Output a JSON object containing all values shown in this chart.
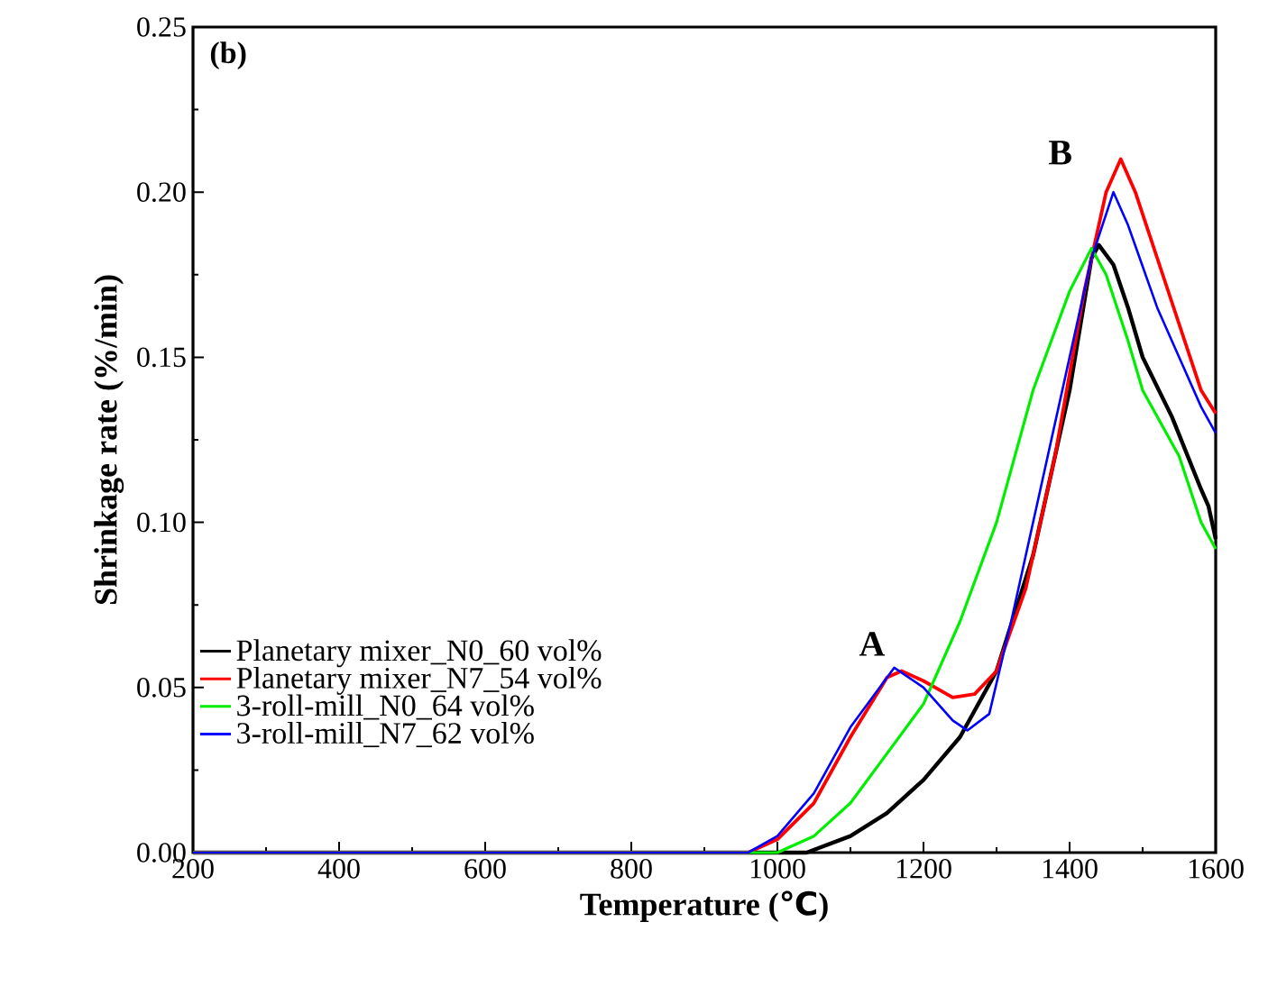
{
  "chart_data": {
    "type": "line",
    "xlabel": "Temperature (℃)",
    "ylabel": "Shrinkage rate (%/min)",
    "annotations": [
      "(b)",
      "A",
      "B"
    ],
    "xlim": [
      200,
      1600
    ],
    "xticks": [
      200,
      400,
      600,
      800,
      1000,
      1200,
      1400,
      1600
    ],
    "ylim": [
      0,
      0.25
    ],
    "yticks": [
      {
        "value": 0,
        "label": "0.00"
      },
      {
        "value": 0.05,
        "label": "0.05"
      },
      {
        "value": 0.1,
        "label": "0.10"
      },
      {
        "value": 0.15,
        "label": "0.15"
      },
      {
        "value": 0.2,
        "label": "0.20"
      },
      {
        "value": 0.25,
        "label": "0.25"
      }
    ],
    "grid": false,
    "legend": "left",
    "marker": "none",
    "line_style": "solid",
    "series": [
      {
        "name": "Planetary mixer_N0_60 vol%",
        "color": "#000000",
        "x": [
          200,
          1000,
          1040,
          1100,
          1150,
          1200,
          1250,
          1300,
          1350,
          1400,
          1430,
          1440,
          1460,
          1480,
          1500,
          1540,
          1580,
          1590,
          1600
        ],
        "values": [
          0,
          0,
          0,
          0.005,
          0.012,
          0.022,
          0.035,
          0.055,
          0.09,
          0.14,
          0.18,
          0.184,
          0.178,
          0.165,
          0.15,
          0.132,
          0.11,
          0.105,
          0.095
        ]
      },
      {
        "name": "Planetary mixer_N7_54 vol%",
        "color": "#ff0000",
        "x": [
          200,
          960,
          1000,
          1050,
          1100,
          1150,
          1170,
          1200,
          1240,
          1270,
          1300,
          1340,
          1380,
          1420,
          1450,
          1470,
          1490,
          1520,
          1550,
          1580,
          1600
        ],
        "values": [
          0,
          0,
          0.004,
          0.015,
          0.035,
          0.053,
          0.055,
          0.052,
          0.047,
          0.048,
          0.055,
          0.08,
          0.12,
          0.17,
          0.2,
          0.21,
          0.2,
          0.18,
          0.16,
          0.14,
          0.133
        ]
      },
      {
        "name": "3-roll-mill_N0_64 vol%",
        "color": "#00ee00",
        "x": [
          200,
          1000,
          1050,
          1100,
          1150,
          1200,
          1250,
          1300,
          1350,
          1400,
          1430,
          1450,
          1480,
          1500,
          1550,
          1580,
          1600
        ],
        "values": [
          0,
          0,
          0.005,
          0.015,
          0.03,
          0.045,
          0.07,
          0.1,
          0.14,
          0.17,
          0.183,
          0.175,
          0.155,
          0.14,
          0.12,
          0.1,
          0.092
        ]
      },
      {
        "name": "3-roll-mill_N7_62 vol%",
        "color": "#0000ff",
        "x": [
          200,
          960,
          1000,
          1050,
          1100,
          1160,
          1200,
          1240,
          1260,
          1290,
          1320,
          1360,
          1400,
          1430,
          1460,
          1480,
          1520,
          1550,
          1580,
          1600
        ],
        "values": [
          0,
          0,
          0.005,
          0.018,
          0.038,
          0.056,
          0.05,
          0.04,
          0.037,
          0.042,
          0.07,
          0.11,
          0.15,
          0.18,
          0.2,
          0.19,
          0.165,
          0.15,
          0.135,
          0.127
        ]
      }
    ]
  }
}
